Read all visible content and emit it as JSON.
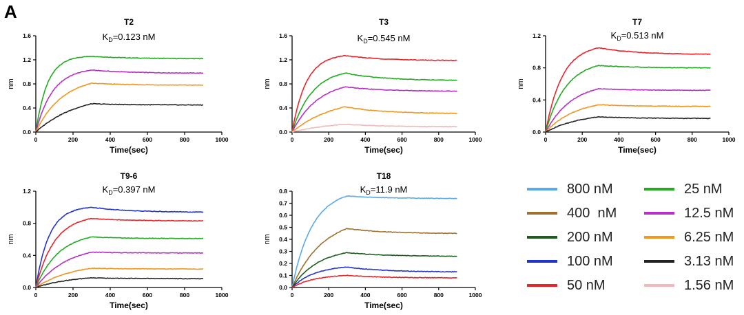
{
  "panel_letter": "A",
  "colors": {
    "800 nM": "#5aa9ea",
    "400 nM": "#a0702f",
    "200 nM": "#1e5b1e",
    "100 nM": "#2233cc",
    "50 nM": "#e8232a",
    "25 nM": "#22aa22",
    "12.5 nM": "#b52fc4",
    "6.25 nM": "#f0961e",
    "3.13 nM": "#222222",
    "1.56 nM": "#f0b8b8"
  },
  "legend": [
    {
      "key": "800 nM",
      "label": "800 nM"
    },
    {
      "key": "400 nM",
      "label": "400  nM"
    },
    {
      "key": "200 nM",
      "label": "200 nM"
    },
    {
      "key": "100 nM",
      "label": "100 nM"
    },
    {
      "key": "50 nM",
      "label": "50 nM"
    },
    {
      "key": "25 nM",
      "label": "25 nM"
    },
    {
      "key": "12.5 nM",
      "label": "12.5 nM"
    },
    {
      "key": "6.25 nM",
      "label": "6.25 nM"
    },
    {
      "key": "3.13 nM",
      "label": "3.13 nM"
    },
    {
      "key": "1.56 nM",
      "label": "1.56 nM"
    }
  ],
  "chart_data": [
    {
      "type": "line",
      "title": "T2",
      "kd_prefix": "K",
      "kd_sub": "D",
      "kd_value": "=0.123 nM",
      "xlabel": "Time(sec)",
      "ylabel": "nm",
      "xlim": [
        0,
        1000
      ],
      "ylim": [
        0,
        1.6
      ],
      "xticks": [
        "0",
        "200",
        "400",
        "600",
        "800",
        "1000"
      ],
      "yticks": [
        "0.0",
        "0.4",
        "0.8",
        "1.2",
        "1.6"
      ],
      "association_end": 300,
      "end_time": 900,
      "series": [
        {
          "name": "25 nM",
          "peak": 1.26,
          "end": 1.22,
          "k": 0.016
        },
        {
          "name": "12.5 nM",
          "peak": 1.03,
          "end": 0.98,
          "k": 0.011
        },
        {
          "name": "6.25 nM",
          "peak": 0.81,
          "end": 0.78,
          "k": 0.007
        },
        {
          "name": "3.13 nM",
          "peak": 0.47,
          "end": 0.45,
          "k": 0.0045
        }
      ]
    },
    {
      "type": "line",
      "title": "T3",
      "kd_prefix": "K",
      "kd_sub": "D",
      "kd_value": "=0.545 nM",
      "xlabel": "Time(sec)",
      "ylabel": "nm",
      "xlim": [
        0,
        1000
      ],
      "ylim": [
        0,
        1.6
      ],
      "xticks": [
        "0",
        "200",
        "400",
        "600",
        "800",
        "1000"
      ],
      "yticks": [
        "0.0",
        "0.4",
        "0.8",
        "1.2",
        "1.6"
      ],
      "association_end": 290,
      "end_time": 900,
      "series": [
        {
          "name": "50 nM",
          "peak": 1.27,
          "end": 1.19,
          "k": 0.013
        },
        {
          "name": "25 nM",
          "peak": 0.98,
          "end": 0.86,
          "k": 0.009
        },
        {
          "name": "12.5 nM",
          "peak": 0.75,
          "end": 0.68,
          "k": 0.007
        },
        {
          "name": "6.25 nM",
          "peak": 0.42,
          "end": 0.31,
          "k": 0.0045
        },
        {
          "name": "1.56 nM",
          "peak": 0.13,
          "end": 0.09,
          "k": 0.004
        }
      ]
    },
    {
      "type": "line",
      "title": "T7",
      "kd_prefix": "K",
      "kd_sub": "D",
      "kd_value": "=0.513 nM",
      "xlabel": "Time(sec)",
      "ylabel": "nm",
      "xlim": [
        0,
        1000
      ],
      "ylim": [
        0,
        1.2
      ],
      "xticks": [
        "0",
        "200",
        "400",
        "600",
        "800",
        "1000"
      ],
      "yticks": [
        "0.0",
        "0.4",
        "0.8",
        "1.2"
      ],
      "association_end": 290,
      "end_time": 900,
      "series": [
        {
          "name": "50 nM",
          "peak": 1.05,
          "end": 0.97,
          "k": 0.011
        },
        {
          "name": "25 nM",
          "peak": 0.83,
          "end": 0.8,
          "k": 0.009
        },
        {
          "name": "12.5 nM",
          "peak": 0.54,
          "end": 0.52,
          "k": 0.007
        },
        {
          "name": "6.25 nM",
          "peak": 0.34,
          "end": 0.32,
          "k": 0.006
        },
        {
          "name": "3.13 nM",
          "peak": 0.19,
          "end": 0.17,
          "k": 0.005
        }
      ]
    },
    {
      "type": "line",
      "title": "T9-6",
      "kd_prefix": "K",
      "kd_sub": "D",
      "kd_value": "=0.397 nM",
      "xlabel": "Time(sec)",
      "ylabel": "nm",
      "xlim": [
        0,
        1000
      ],
      "ylim": [
        0,
        1.2
      ],
      "xticks": [
        "0",
        "200",
        "400",
        "600",
        "800",
        "1000"
      ],
      "yticks": [
        "0.0",
        "0.4",
        "0.8",
        "1.2"
      ],
      "association_end": 300,
      "end_time": 900,
      "series": [
        {
          "name": "100 nM",
          "peak": 1.0,
          "end": 0.94,
          "k": 0.014
        },
        {
          "name": "50 nM",
          "peak": 0.86,
          "end": 0.83,
          "k": 0.01
        },
        {
          "name": "25 nM",
          "peak": 0.63,
          "end": 0.61,
          "k": 0.008
        },
        {
          "name": "12.5 nM",
          "peak": 0.44,
          "end": 0.43,
          "k": 0.006
        },
        {
          "name": "6.25 nM",
          "peak": 0.24,
          "end": 0.23,
          "k": 0.005
        },
        {
          "name": "3.13 nM",
          "peak": 0.12,
          "end": 0.11,
          "k": 0.005
        }
      ]
    },
    {
      "type": "line",
      "title": "T18",
      "kd_prefix": "K",
      "kd_sub": "D",
      "kd_value": "=11.9 nM",
      "xlabel": "Time(sec)",
      "ylabel": "nm",
      "xlim": [
        0,
        1000
      ],
      "ylim": [
        0,
        0.8
      ],
      "xticks": [
        "0",
        "200",
        "400",
        "600",
        "800",
        "1000"
      ],
      "yticks": [
        "0.0",
        "0.1",
        "0.2",
        "0.3",
        "0.4",
        "0.5",
        "0.6",
        "0.7",
        "0.8"
      ],
      "association_end": 300,
      "end_time": 900,
      "series": [
        {
          "name": "800 nM",
          "peak": 0.76,
          "end": 0.74,
          "k": 0.009
        },
        {
          "name": "400 nM",
          "peak": 0.49,
          "end": 0.45,
          "k": 0.006
        },
        {
          "name": "200 nM",
          "peak": 0.29,
          "end": 0.26,
          "k": 0.007
        },
        {
          "name": "100 nM",
          "peak": 0.17,
          "end": 0.13,
          "k": 0.008
        },
        {
          "name": "50 nM",
          "peak": 0.1,
          "end": 0.08,
          "k": 0.008
        }
      ]
    }
  ]
}
